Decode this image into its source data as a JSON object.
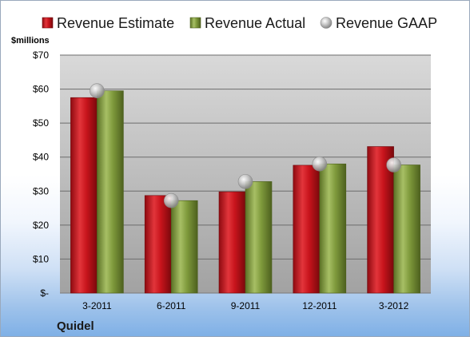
{
  "company": "Quidel",
  "unit_label": "$millions",
  "colors": {
    "estimate": "#c8141c",
    "actual": "#7f9a3c",
    "gaap": "#b8b8b8",
    "plot_top": "#d8d8d8",
    "plot_bottom": "#a3a3a3"
  },
  "chart_data": {
    "type": "bar",
    "title": "",
    "xlabel": "",
    "ylabel": "$millions",
    "categories": [
      "3-2011",
      "6-2011",
      "9-2011",
      "12-2011",
      "3-2012"
    ],
    "series": [
      {
        "name": "Revenue Estimate",
        "kind": "bar",
        "values": [
          57.5,
          28.7,
          29.8,
          37.6,
          43.1
        ]
      },
      {
        "name": "Revenue Actual",
        "kind": "bar",
        "values": [
          59.5,
          27.2,
          32.8,
          38.0,
          37.7
        ]
      },
      {
        "name": "Revenue GAAP",
        "kind": "marker",
        "values": [
          59.5,
          27.2,
          32.8,
          38.0,
          37.7
        ]
      }
    ],
    "ylim": [
      0,
      70
    ],
    "yticks": [
      0,
      10,
      20,
      30,
      40,
      50,
      60,
      70
    ],
    "ytick_labels": [
      "$-",
      "$10",
      "$20",
      "$30",
      "$40",
      "$50",
      "$60",
      "$70"
    ],
    "grid": true,
    "legend_position": "top"
  }
}
